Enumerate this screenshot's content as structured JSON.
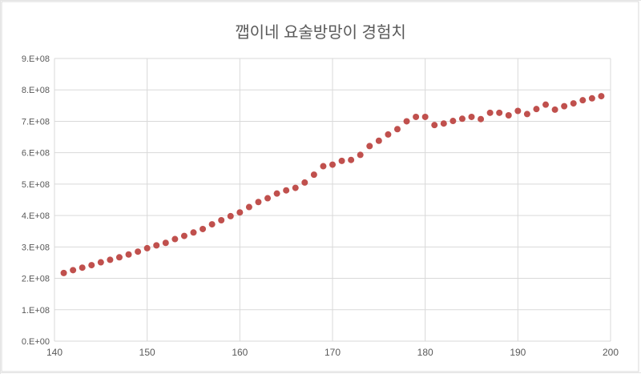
{
  "chart_data": {
    "type": "scatter",
    "title": "깹이네 요술방망이 경험치",
    "xlabel": "",
    "ylabel": "",
    "xlim": [
      140,
      200
    ],
    "ylim": [
      0,
      900000000
    ],
    "x_ticks": [
      140,
      150,
      160,
      170,
      180,
      190,
      200
    ],
    "x_tick_labels": [
      "140",
      "150",
      "160",
      "170",
      "180",
      "190",
      "200"
    ],
    "y_ticks": [
      0,
      100000000,
      200000000,
      300000000,
      400000000,
      500000000,
      600000000,
      700000000,
      800000000,
      900000000
    ],
    "y_tick_labels": [
      "0.E+00",
      "1.E+08",
      "2.E+08",
      "3.E+08",
      "4.E+08",
      "5.E+08",
      "6.E+08",
      "7.E+08",
      "8.E+08",
      "9.E+08"
    ],
    "grid": true,
    "marker_color": "#c0504d",
    "series": [
      {
        "x": [
          141,
          142,
          143,
          144,
          145,
          146,
          147,
          148,
          149,
          150,
          151,
          152,
          153,
          154,
          155,
          156,
          157,
          158,
          159,
          160,
          161,
          162,
          163,
          164,
          165,
          166,
          167,
          168,
          169,
          170,
          171,
          172,
          173,
          174,
          175,
          176,
          177,
          178,
          179,
          180,
          181,
          182,
          183,
          184,
          185,
          186,
          187,
          188,
          189,
          190,
          191,
          192,
          193,
          194,
          195,
          196,
          197,
          198,
          199
        ],
        "y": [
          217000000,
          226000000,
          234000000,
          242000000,
          251000000,
          259000000,
          267000000,
          276000000,
          285000000,
          296000000,
          305000000,
          313000000,
          325000000,
          335000000,
          346000000,
          357000000,
          372000000,
          385000000,
          398000000,
          410000000,
          427000000,
          443000000,
          455000000,
          470000000,
          480000000,
          488000000,
          505000000,
          530000000,
          557000000,
          562000000,
          574000000,
          577000000,
          593000000,
          621000000,
          638000000,
          658000000,
          675000000,
          700000000,
          714000000,
          714000000,
          688000000,
          693000000,
          701000000,
          708000000,
          714000000,
          707000000,
          727000000,
          727000000,
          719000000,
          733000000,
          723000000,
          739000000,
          753000000,
          737000000,
          748000000,
          757000000,
          767000000,
          773000000,
          780000000
        ]
      }
    ]
  }
}
